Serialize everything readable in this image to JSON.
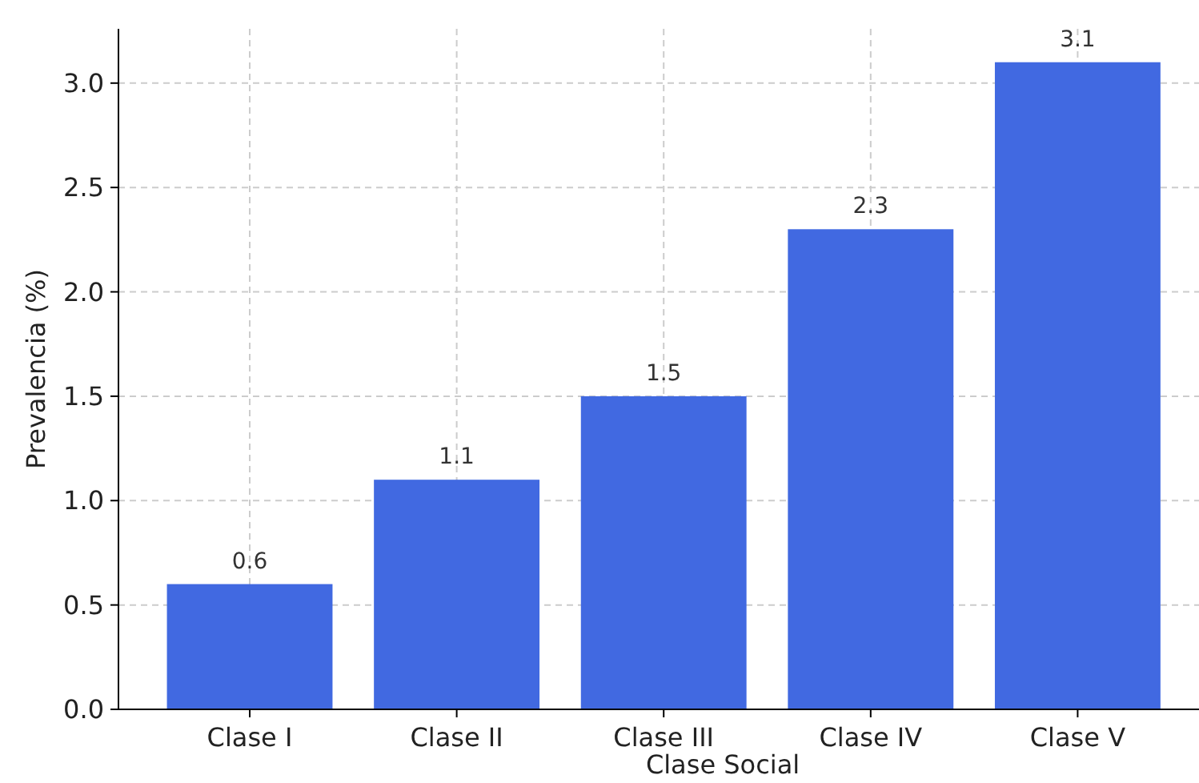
{
  "chart_data": {
    "type": "bar",
    "xlabel": "Clase Social",
    "ylabel": "Prevalencia (%)",
    "categories": [
      "Clase I",
      "Clase II",
      "Clase III",
      "Clase IV",
      "Clase V"
    ],
    "values": [
      0.6,
      1.1,
      1.5,
      2.3,
      3.1
    ],
    "color": "#4169e1",
    "ylim": [
      0,
      3.26
    ],
    "yticks": [
      {
        "value": 0,
        "label": "0.0"
      },
      {
        "value": 0.5,
        "label": "0.5"
      },
      {
        "value": 1,
        "label": "1.0"
      },
      {
        "value": 1.5,
        "label": "1.5"
      },
      {
        "value": 2,
        "label": "2.0"
      },
      {
        "value": 2.5,
        "label": "2.5"
      },
      {
        "value": 3,
        "label": "3.0"
      }
    ],
    "grid": true,
    "data_labels": true
  }
}
